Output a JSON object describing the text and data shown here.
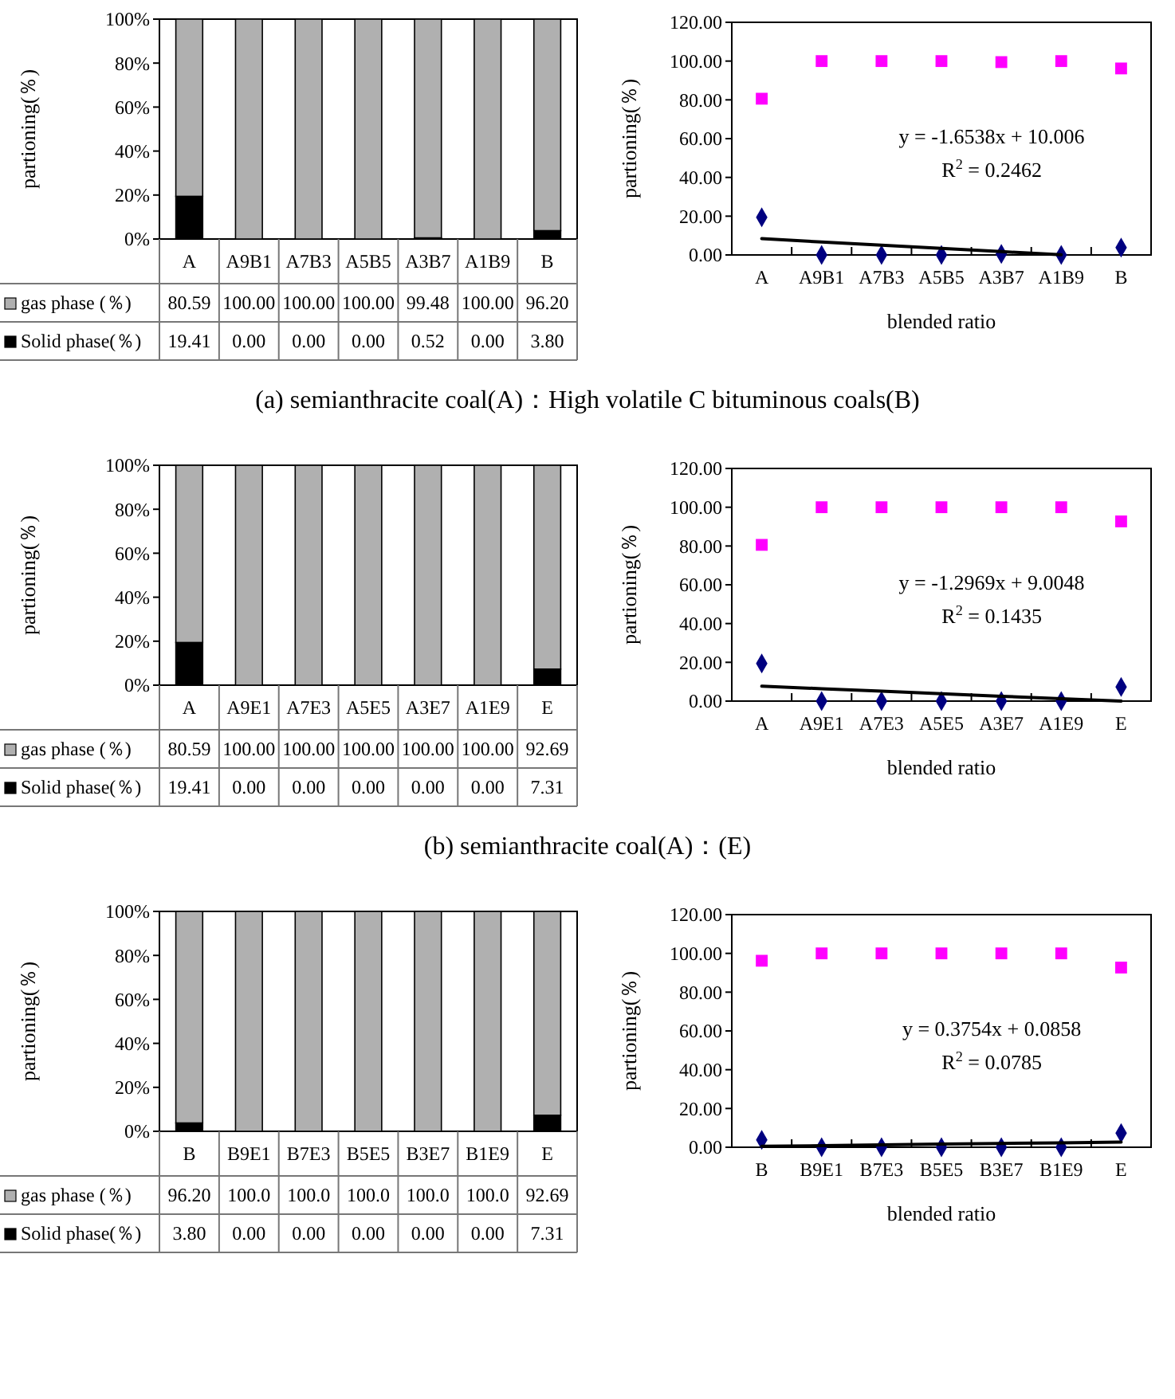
{
  "chart_data": [
    {
      "type": "bar",
      "stacked": true,
      "ylabel": "partioning(％)",
      "legend": "bottom",
      "categories": [
        "A",
        "A9B1",
        "A7B3",
        "A5B5",
        "A3B7",
        "A1B9",
        "B"
      ],
      "ylim": [
        0,
        100
      ],
      "yticks": [
        {
          "value": 0,
          "label": "0%"
        },
        {
          "value": 20,
          "label": "20%"
        },
        {
          "value": 40,
          "label": "40%"
        },
        {
          "value": 60,
          "label": "60%"
        },
        {
          "value": 80,
          "label": "80%"
        },
        {
          "value": 100,
          "label": "100%"
        }
      ],
      "series": [
        {
          "name": "Solid phase(％)",
          "color": "#000000",
          "values": [
            19.41,
            0,
            0,
            0,
            0.52,
            0,
            3.8
          ],
          "value_labels": [
            "19.41",
            "0.00",
            "0.00",
            "0.00",
            "0.52",
            "0.00",
            "3.80"
          ]
        },
        {
          "name": "gas phase (％)",
          "color": "#b0b0b0",
          "values": [
            80.59,
            100,
            100,
            100,
            99.48,
            100,
            96.2
          ],
          "value_labels": [
            "80.59",
            "100.00",
            "100.00",
            "100.00",
            "99.48",
            "100.00",
            "96.20"
          ]
        }
      ],
      "annotations": [
        "(a) semianthracite coal(A)：High volatile C bituminous coals(B)"
      ]
    },
    {
      "type": "scatter",
      "xlabel": "blended ratio",
      "ylabel": "partioning(％)",
      "categories": [
        "A",
        "A9B1",
        "A7B3",
        "A5B5",
        "A3B7",
        "A1B9",
        "B"
      ],
      "ylim": [
        0,
        120
      ],
      "yticks": [
        {
          "value": 0,
          "label": "0.00"
        },
        {
          "value": 20,
          "label": "20.00"
        },
        {
          "value": 40,
          "label": "40.00"
        },
        {
          "value": 60,
          "label": "60.00"
        },
        {
          "value": 80,
          "label": "80.00"
        },
        {
          "value": 100,
          "label": "100.00"
        },
        {
          "value": 120,
          "label": "120.00"
        }
      ],
      "series": [
        {
          "color": "#000080",
          "marker": "diamond",
          "values": [
            19.41,
            0,
            0,
            0,
            0.52,
            0,
            3.8
          ]
        },
        {
          "color": "#ff00ff",
          "marker": "square",
          "values": [
            80.59,
            100,
            100,
            100,
            99.48,
            100,
            96.2
          ]
        },
        {
          "type": "line",
          "color": "#000000",
          "values": [
            8.4,
            6.7,
            5.0,
            3.4,
            1.7,
            0.1,
            null
          ]
        }
      ],
      "annotations": [
        "y = -1.6538x + 10.006",
        "R$^{2}$ = 0.2462"
      ]
    },
    {
      "type": "bar",
      "stacked": true,
      "ylabel": "partioning(％)",
      "legend": "bottom",
      "categories": [
        "A",
        "A9E1",
        "A7E3",
        "A5E5",
        "A3E7",
        "A1E9",
        "E"
      ],
      "ylim": [
        0,
        100
      ],
      "yticks": [
        {
          "value": 0,
          "label": "0%"
        },
        {
          "value": 20,
          "label": "20%"
        },
        {
          "value": 40,
          "label": "40%"
        },
        {
          "value": 60,
          "label": "60%"
        },
        {
          "value": 80,
          "label": "80%"
        },
        {
          "value": 100,
          "label": "100%"
        }
      ],
      "series": [
        {
          "name": "Solid phase(％)",
          "color": "#000000",
          "values": [
            19.41,
            0,
            0,
            0,
            0,
            0,
            7.31
          ],
          "value_labels": [
            "19.41",
            "0.00",
            "0.00",
            "0.00",
            "0.00",
            "0.00",
            "7.31"
          ]
        },
        {
          "name": "gas phase (％)",
          "color": "#b0b0b0",
          "values": [
            80.59,
            100,
            100,
            100,
            100,
            100,
            92.69
          ],
          "value_labels": [
            "80.59",
            "100.00",
            "100.00",
            "100.00",
            "100.00",
            "100.00",
            "92.69"
          ]
        }
      ],
      "annotations": [
        "(b) semianthracite coal(A)：(E)"
      ]
    },
    {
      "type": "scatter",
      "xlabel": "blended ratio",
      "ylabel": "partioning(％)",
      "categories": [
        "A",
        "A9E1",
        "A7E3",
        "A5E5",
        "A3E7",
        "A1E9",
        "E"
      ],
      "ylim": [
        0,
        120
      ],
      "yticks": [
        {
          "value": 0,
          "label": "0.00"
        },
        {
          "value": 20,
          "label": "20.00"
        },
        {
          "value": 40,
          "label": "40.00"
        },
        {
          "value": 60,
          "label": "60.00"
        },
        {
          "value": 80,
          "label": "80.00"
        },
        {
          "value": 100,
          "label": "100.00"
        },
        {
          "value": 120,
          "label": "120.00"
        }
      ],
      "series": [
        {
          "color": "#000080",
          "marker": "diamond",
          "values": [
            19.41,
            0,
            0,
            0,
            0,
            0,
            7.31
          ]
        },
        {
          "color": "#ff00ff",
          "marker": "square",
          "values": [
            80.59,
            100,
            100,
            100,
            100,
            100,
            92.69
          ]
        },
        {
          "type": "line",
          "color": "#000000",
          "values": [
            7.7,
            6.4,
            5.1,
            3.8,
            2.5,
            1.2,
            0
          ]
        }
      ],
      "annotations": [
        "y = -1.2969x + 9.0048",
        "R$^{2}$ = 0.1435"
      ]
    },
    {
      "type": "bar",
      "stacked": true,
      "ylabel": "partioning(％)",
      "legend": "bottom",
      "categories": [
        "B",
        "B9E1",
        "B7E3",
        "B5E5",
        "B3E7",
        "B1E9",
        "E"
      ],
      "ylim": [
        0,
        100
      ],
      "yticks": [
        {
          "value": 0,
          "label": "0%"
        },
        {
          "value": 20,
          "label": "20%"
        },
        {
          "value": 40,
          "label": "40%"
        },
        {
          "value": 60,
          "label": "60%"
        },
        {
          "value": 80,
          "label": "80%"
        },
        {
          "value": 100,
          "label": "100%"
        }
      ],
      "series": [
        {
          "name": "Solid phase(％)",
          "color": "#000000",
          "values": [
            3.8,
            0,
            0,
            0,
            0,
            0,
            7.31
          ],
          "value_labels": [
            "3.80",
            "0.00",
            "0.00",
            "0.00",
            "0.00",
            "0.00",
            "7.31"
          ]
        },
        {
          "name": "gas phase (％)",
          "color": "#b0b0b0",
          "values": [
            96.2,
            100,
            100,
            100,
            100,
            100,
            92.69
          ],
          "value_labels": [
            "96.20",
            "100.0",
            "100.0",
            "100.0",
            "100.0",
            "100.0",
            "92.69"
          ]
        }
      ]
    },
    {
      "type": "scatter",
      "xlabel": "blended ratio",
      "ylabel": "partioning(％)",
      "categories": [
        "B",
        "B9E1",
        "B7E3",
        "B5E5",
        "B3E7",
        "B1E9",
        "E"
      ],
      "ylim": [
        0,
        120
      ],
      "yticks": [
        {
          "value": 0,
          "label": "0.00"
        },
        {
          "value": 20,
          "label": "20.00"
        },
        {
          "value": 40,
          "label": "40.00"
        },
        {
          "value": 60,
          "label": "60.00"
        },
        {
          "value": 80,
          "label": "80.00"
        },
        {
          "value": 100,
          "label": "100.00"
        },
        {
          "value": 120,
          "label": "120.00"
        }
      ],
      "series": [
        {
          "color": "#000080",
          "marker": "diamond",
          "values": [
            3.8,
            0,
            0,
            0,
            0,
            0,
            7.31
          ]
        },
        {
          "color": "#ff00ff",
          "marker": "square",
          "values": [
            96.2,
            100,
            100,
            100,
            100,
            100,
            92.69
          ]
        },
        {
          "type": "line",
          "color": "#000000",
          "values": [
            0.5,
            0.8,
            1.2,
            1.6,
            2.0,
            2.3,
            2.7
          ]
        }
      ],
      "annotations": [
        "y = 0.3754x + 0.0858",
        "R$^{2}$ = 0.0785"
      ]
    }
  ]
}
